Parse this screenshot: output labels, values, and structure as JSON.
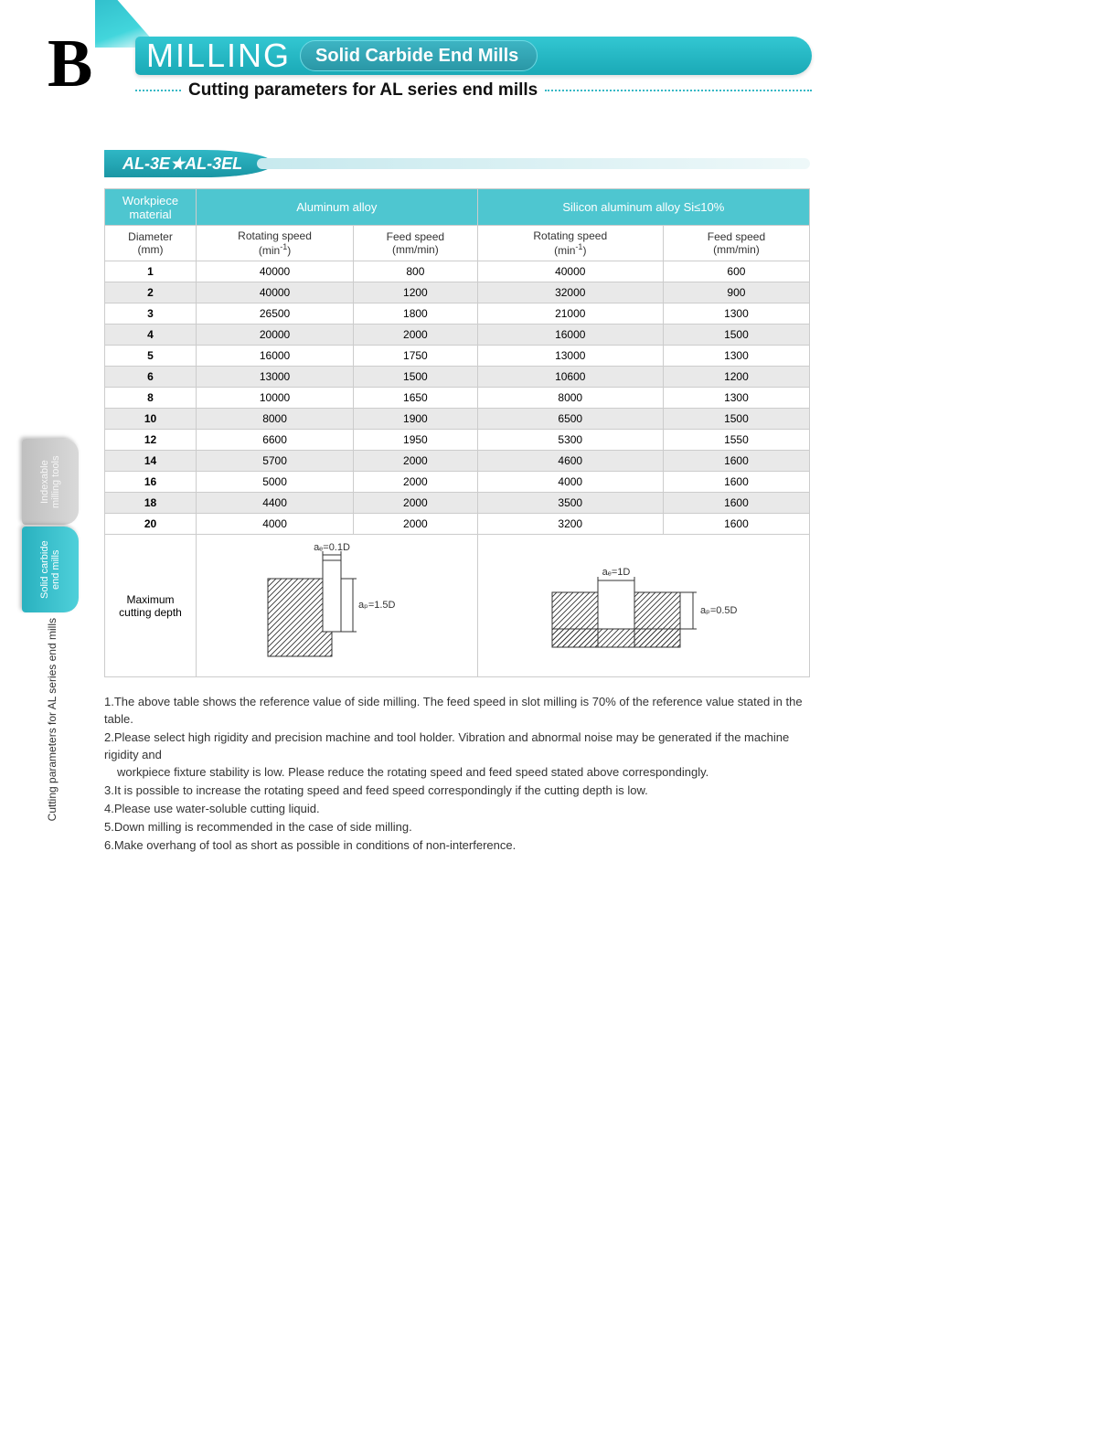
{
  "header": {
    "logo_letter": "B",
    "title": "MILLING",
    "pill": "Solid Carbide End Mills",
    "subtitle": "Cutting parameters for AL series end mills"
  },
  "section": {
    "label": "AL-3E★AL-3EL"
  },
  "colors": {
    "teal": "#30bcc9",
    "teal_dark": "#1a96a4",
    "header_cell": "#4ec6d0",
    "row_even": "#e9e9e9",
    "row_odd": "#ffffff",
    "border": "#cccccc"
  },
  "table": {
    "header1": {
      "workpiece": "Workpiece\nmaterial",
      "mat1": "Aluminum alloy",
      "mat2": "Silicon aluminum alloy Si≤10%"
    },
    "header2": {
      "diameter": "Diameter\n(mm)",
      "rot": "Rotating speed\n(min",
      "rot_sup": "-1",
      "rot_close": ")",
      "feed": "Feed speed\n(mm/min)"
    },
    "rows": [
      {
        "d": "1",
        "r1": "40000",
        "f1": "800",
        "r2": "40000",
        "f2": "600"
      },
      {
        "d": "2",
        "r1": "40000",
        "f1": "1200",
        "r2": "32000",
        "f2": "900"
      },
      {
        "d": "3",
        "r1": "26500",
        "f1": "1800",
        "r2": "21000",
        "f2": "1300"
      },
      {
        "d": "4",
        "r1": "20000",
        "f1": "2000",
        "r2": "16000",
        "f2": "1500"
      },
      {
        "d": "5",
        "r1": "16000",
        "f1": "1750",
        "r2": "13000",
        "f2": "1300"
      },
      {
        "d": "6",
        "r1": "13000",
        "f1": "1500",
        "r2": "10600",
        "f2": "1200"
      },
      {
        "d": "8",
        "r1": "10000",
        "f1": "1650",
        "r2": "8000",
        "f2": "1300"
      },
      {
        "d": "10",
        "r1": "8000",
        "f1": "1900",
        "r2": "6500",
        "f2": "1500"
      },
      {
        "d": "12",
        "r1": "6600",
        "f1": "1950",
        "r2": "5300",
        "f2": "1550"
      },
      {
        "d": "14",
        "r1": "5700",
        "f1": "2000",
        "r2": "4600",
        "f2": "1600"
      },
      {
        "d": "16",
        "r1": "5000",
        "f1": "2000",
        "r2": "4000",
        "f2": "1600"
      },
      {
        "d": "18",
        "r1": "4400",
        "f1": "2000",
        "r2": "3500",
        "f2": "1600"
      },
      {
        "d": "20",
        "r1": "4000",
        "f1": "2000",
        "r2": "3200",
        "f2": "1600"
      }
    ],
    "diagram_label": "Maximum\ncutting depth",
    "diag1": {
      "ae": "aₑ=0.1D",
      "ap": "aₚ=1.5D"
    },
    "diag2": {
      "ae": "aₑ=1D",
      "ap": "aₚ=0.5D"
    }
  },
  "notes": [
    "1.The above table shows the reference value of side milling. The feed speed in slot milling is 70% of the reference value stated in the table.",
    "2.Please select high rigidity and precision machine and tool holder. Vibration and abnormal noise may be generated if the machine rigidity and",
    "workpiece fixture stability is low. Please reduce the rotating speed and feed speed stated above correspondingly.",
    "3.It is possible to increase the rotating speed and feed speed correspondingly if the cutting depth is low.",
    "4.Please use water-soluble cutting liquid.",
    "5.Down milling is recommended in the case of side milling.",
    "6.Make overhang of tool as short as possible in conditions of non-interference."
  ],
  "side_tabs": {
    "tab1": "Indexable\nmilling tools",
    "tab2": "Solid carbide\nend mills",
    "caption": "Cutting parameters for AL series end mills"
  }
}
